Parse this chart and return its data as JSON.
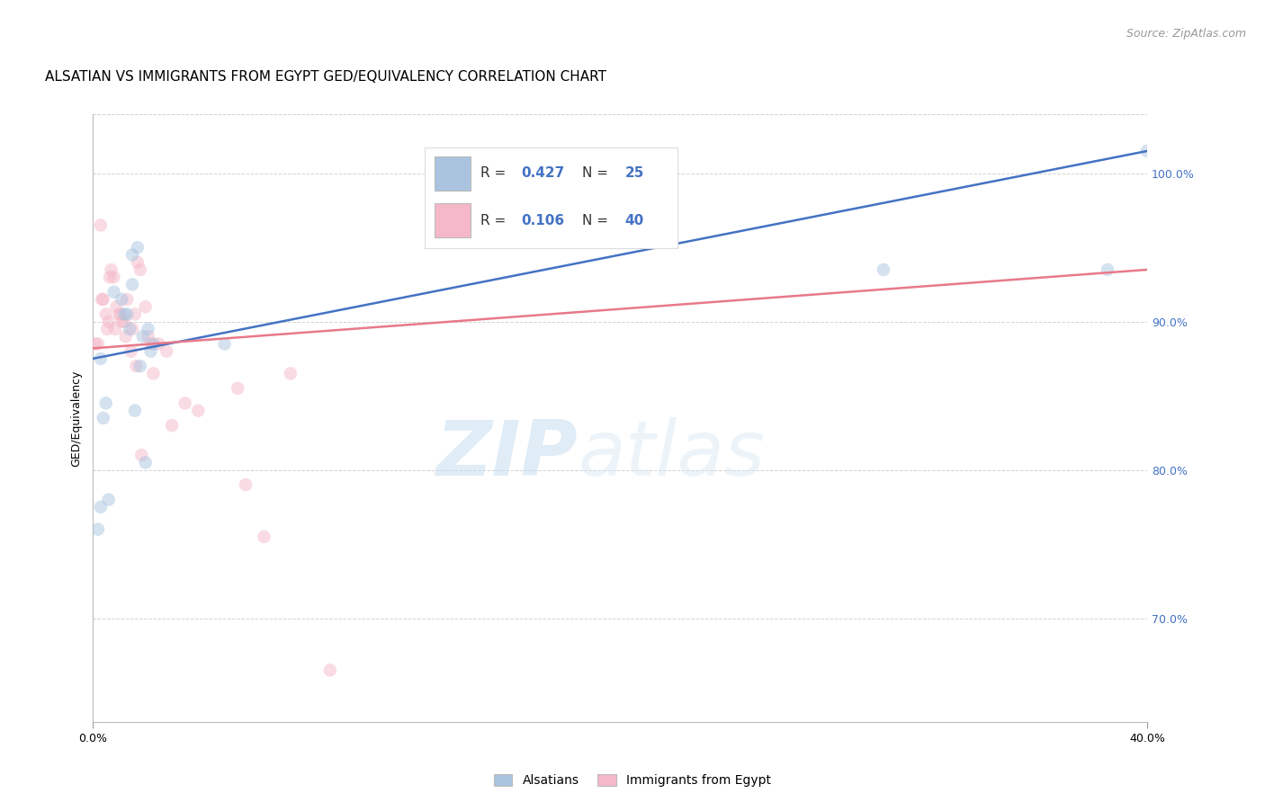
{
  "title": "ALSATIAN VS IMMIGRANTS FROM EGYPT GED/EQUIVALENCY CORRELATION CHART",
  "source": "Source: ZipAtlas.com",
  "ylabel": "GED/Equivalency",
  "yticks": [
    70.0,
    80.0,
    90.0,
    100.0
  ],
  "ytick_labels": [
    "70.0%",
    "80.0%",
    "90.0%",
    "100.0%"
  ],
  "ymin": 63.0,
  "ymax": 104.0,
  "xmin": 0.0,
  "xmax": 40.0,
  "legend_blue_r": "0.427",
  "legend_blue_n": "25",
  "legend_pink_r": "0.106",
  "legend_pink_n": "40",
  "legend_label_blue": "Alsatians",
  "legend_label_pink": "Immigrants from Egypt",
  "blue_line_x0": 0.0,
  "blue_line_y0": 87.5,
  "blue_line_x1": 40.0,
  "blue_line_y1": 101.5,
  "pink_line_x0": 0.0,
  "pink_line_y0": 88.2,
  "pink_line_x1": 40.0,
  "pink_line_y1": 93.5,
  "blue_scatter_x": [
    0.2,
    0.3,
    1.5,
    0.8,
    1.1,
    1.3,
    1.4,
    1.2,
    0.5,
    0.4,
    1.9,
    2.1,
    2.3,
    2.2,
    1.8,
    1.6,
    2.0,
    0.3,
    0.6,
    5.0,
    30.0,
    38.5,
    1.7,
    1.5,
    40.0
  ],
  "blue_scatter_y": [
    76.0,
    87.5,
    94.5,
    92.0,
    91.5,
    90.5,
    89.5,
    90.5,
    84.5,
    83.5,
    89.0,
    89.5,
    88.5,
    88.0,
    87.0,
    84.0,
    80.5,
    77.5,
    78.0,
    88.5,
    93.5,
    93.5,
    95.0,
    92.5,
    101.5
  ],
  "pink_scatter_x": [
    0.1,
    0.2,
    0.4,
    0.5,
    0.6,
    0.7,
    0.8,
    0.9,
    1.0,
    1.1,
    1.2,
    1.3,
    1.5,
    1.6,
    1.7,
    1.8,
    2.0,
    2.1,
    2.2,
    2.5,
    2.8,
    3.5,
    5.5,
    7.5,
    0.3,
    0.35,
    0.55,
    0.65,
    0.85,
    1.05,
    1.25,
    1.45,
    1.65,
    1.85,
    2.3,
    3.0,
    6.5,
    9.0,
    4.0,
    5.8
  ],
  "pink_scatter_y": [
    88.5,
    88.5,
    91.5,
    90.5,
    90.0,
    93.5,
    93.0,
    91.0,
    90.5,
    90.0,
    90.0,
    91.5,
    89.5,
    90.5,
    94.0,
    93.5,
    91.0,
    89.0,
    88.5,
    88.5,
    88.0,
    84.5,
    85.5,
    86.5,
    96.5,
    91.5,
    89.5,
    93.0,
    89.5,
    90.5,
    89.0,
    88.0,
    87.0,
    81.0,
    86.5,
    83.0,
    75.5,
    66.5,
    84.0,
    79.0
  ],
  "blue_color": "#aac4e0",
  "pink_color": "#f5b8c8",
  "blue_line_color": "#4472c4",
  "pink_line_color": "#e8798a",
  "watermark_zip": "ZIP",
  "watermark_atlas": "atlas",
  "title_fontsize": 11,
  "source_fontsize": 9,
  "axis_label_fontsize": 9,
  "tick_fontsize": 9,
  "scatter_size": 110,
  "scatter_alpha": 0.5,
  "background_color": "#ffffff",
  "grid_color": "#c8c8c8",
  "grid_alpha": 0.8
}
